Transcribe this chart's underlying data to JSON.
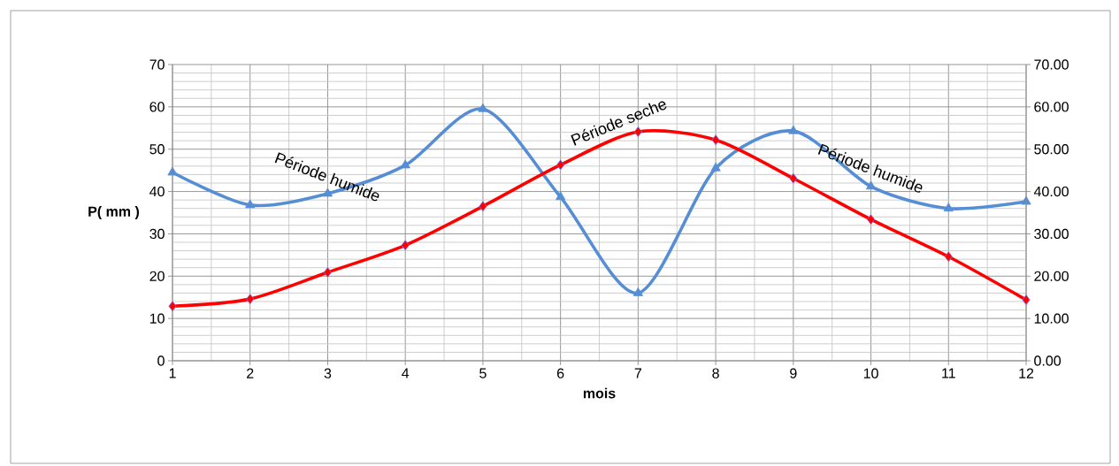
{
  "chart_data": {
    "type": "line",
    "xlabel": "mois",
    "ylabel": "P( mm )",
    "x": [
      1,
      2,
      3,
      4,
      5,
      6,
      7,
      8,
      9,
      10,
      11,
      12
    ],
    "xlim": [
      1,
      12
    ],
    "xticks": [
      1,
      2,
      3,
      4,
      5,
      6,
      7,
      8,
      9,
      10,
      11,
      12
    ],
    "ylim": [
      0,
      70
    ],
    "yticks": [
      0,
      10,
      20,
      30,
      40,
      50,
      60,
      70
    ],
    "y2lim": [
      0,
      70
    ],
    "y2ticks": [
      {
        "value": 0,
        "label": "0.00"
      },
      {
        "value": 10,
        "label": "10.00"
      },
      {
        "value": 20,
        "label": "20.00"
      },
      {
        "value": 30,
        "label": "30.00"
      },
      {
        "value": 40,
        "label": "40.00"
      },
      {
        "value": 50,
        "label": "50.00"
      },
      {
        "value": 60,
        "label": "60.00"
      },
      {
        "value": 70,
        "label": "70.00"
      }
    ],
    "grid": true,
    "series": [
      {
        "color": "#558ed5",
        "marker": "triangle",
        "values": [
          44.5,
          36.8,
          39.5,
          46.2,
          59.5,
          38.7,
          16.0,
          45.5,
          54.3,
          41.2,
          36.0,
          37.6
        ]
      },
      {
        "color": "#ff0000",
        "marker": "diamond",
        "axis": "y2",
        "values": [
          12.9,
          14.6,
          20.9,
          27.3,
          36.5,
          46.3,
          54.1,
          52.2,
          43.1,
          33.4,
          24.6,
          14.4
        ]
      }
    ],
    "annotations": [
      "Période humide",
      "Période seche",
      "Période humide"
    ]
  }
}
